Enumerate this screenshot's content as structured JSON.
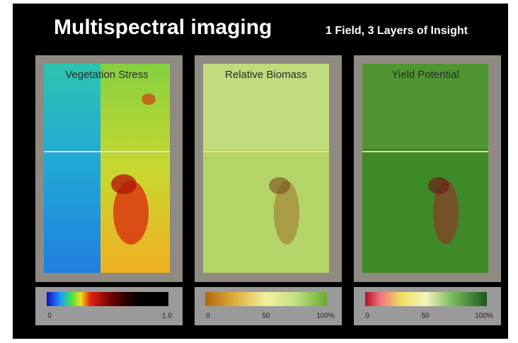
{
  "header": {
    "title": "Multispectral imaging",
    "subtitle": "1 Field, 3 Layers of Insight"
  },
  "panels": [
    {
      "label": "Vegetation Stress",
      "scale": [
        "0",
        "1.0"
      ]
    },
    {
      "label": "Relative Biomass",
      "scale": [
        "0",
        "50",
        "100%"
      ]
    },
    {
      "label": "Yield Potential",
      "scale": [
        "0",
        "50",
        "100%"
      ]
    }
  ]
}
